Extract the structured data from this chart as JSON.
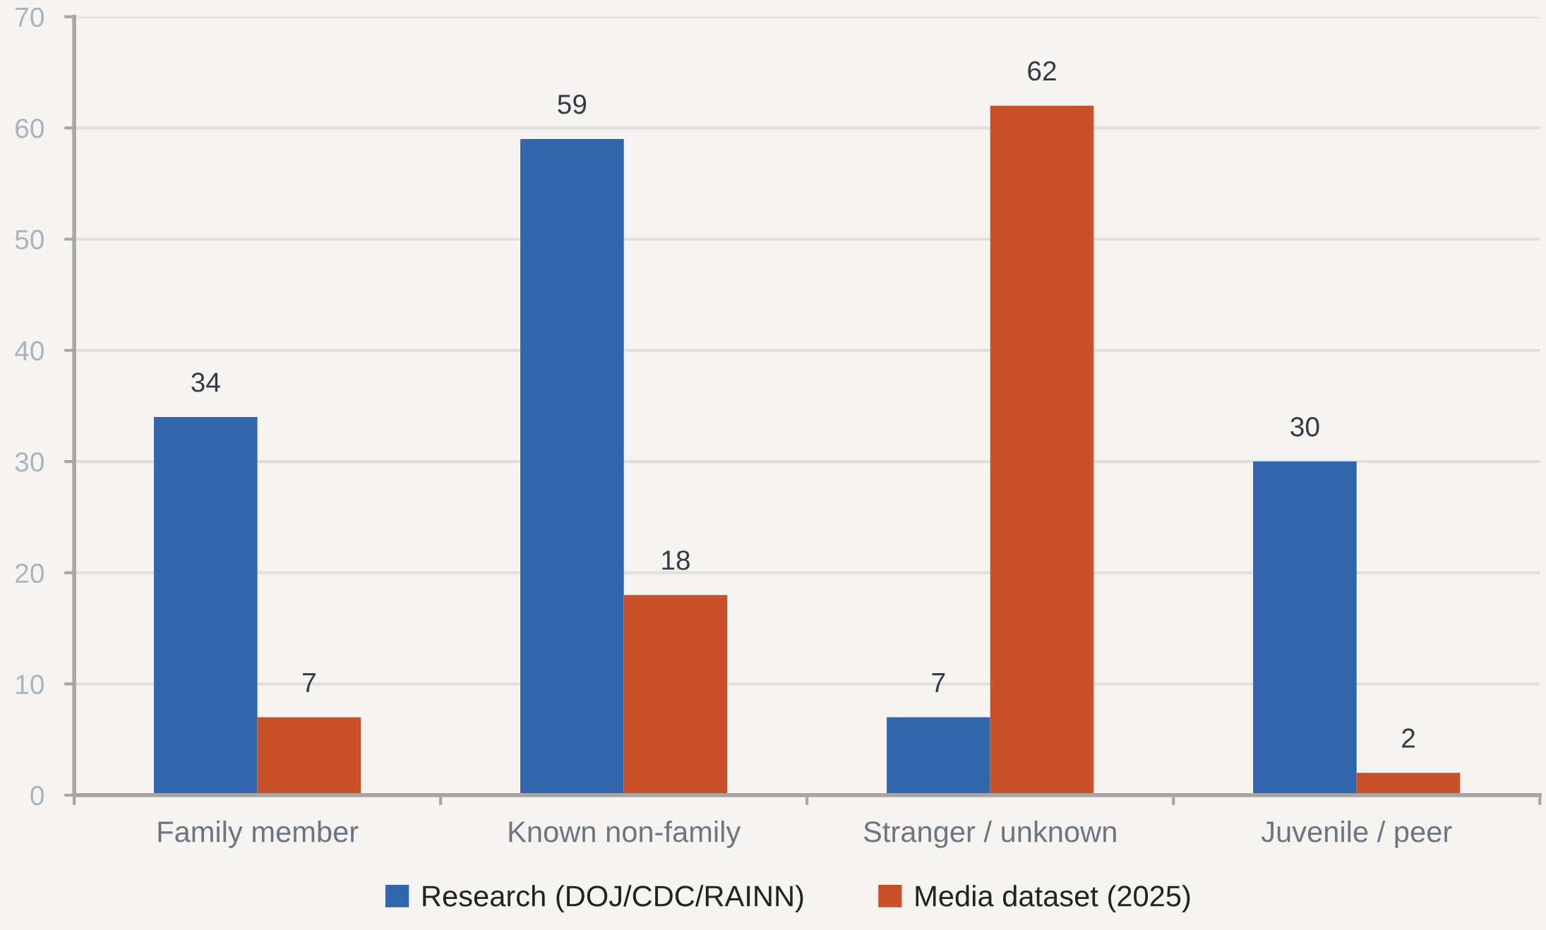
{
  "chart_data": {
    "type": "bar",
    "categories": [
      "Family member",
      "Known non-family",
      "Stranger / unknown",
      "Juvenile / peer"
    ],
    "series": [
      {
        "name": "Research (DOJ/CDC/RAINN)",
        "color": "#3366ad",
        "values": [
          34,
          59,
          7,
          30
        ]
      },
      {
        "name": "Media dataset (2025)",
        "color": "#c8502a",
        "values": [
          7,
          18,
          62,
          2
        ]
      }
    ],
    "ylim": [
      0,
      70
    ],
    "yticks": [
      0,
      10,
      20,
      30,
      40,
      50,
      60,
      70
    ],
    "grid": "y",
    "legend": "bottom",
    "data_labels": true
  }
}
